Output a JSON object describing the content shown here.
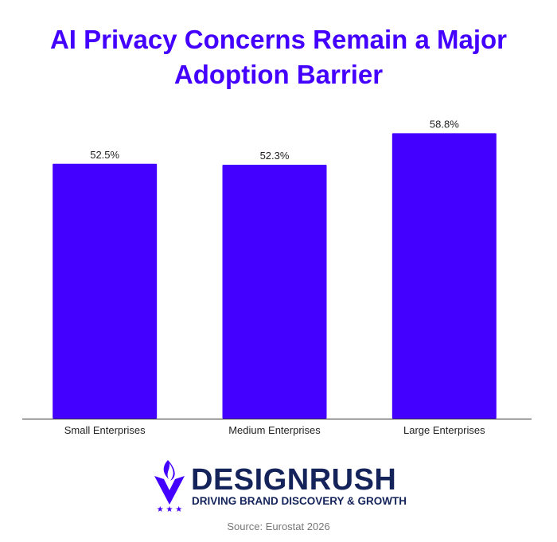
{
  "chart_data": {
    "type": "bar",
    "title": "AI Privacy Concerns Remain a Major Adoption Barrier",
    "categories": [
      "Small Enterprises",
      "Medium Enterprises",
      "Large Enterprises"
    ],
    "values": [
      52.5,
      52.3,
      58.8
    ],
    "data_labels": [
      "52.5%",
      "52.3%",
      "58.8%"
    ],
    "xlabel": "",
    "ylabel": "",
    "ylim": [
      0,
      60
    ],
    "grid": false,
    "bar_color": "#4400ff"
  },
  "branding": {
    "name": "DESIGNRUSH",
    "tagline": "DRIVING BRAND DISCOVERY & GROWTH",
    "logo_color": "#4400ff",
    "text_color": "#14245a"
  },
  "source": "Source: Eurostat 2026"
}
